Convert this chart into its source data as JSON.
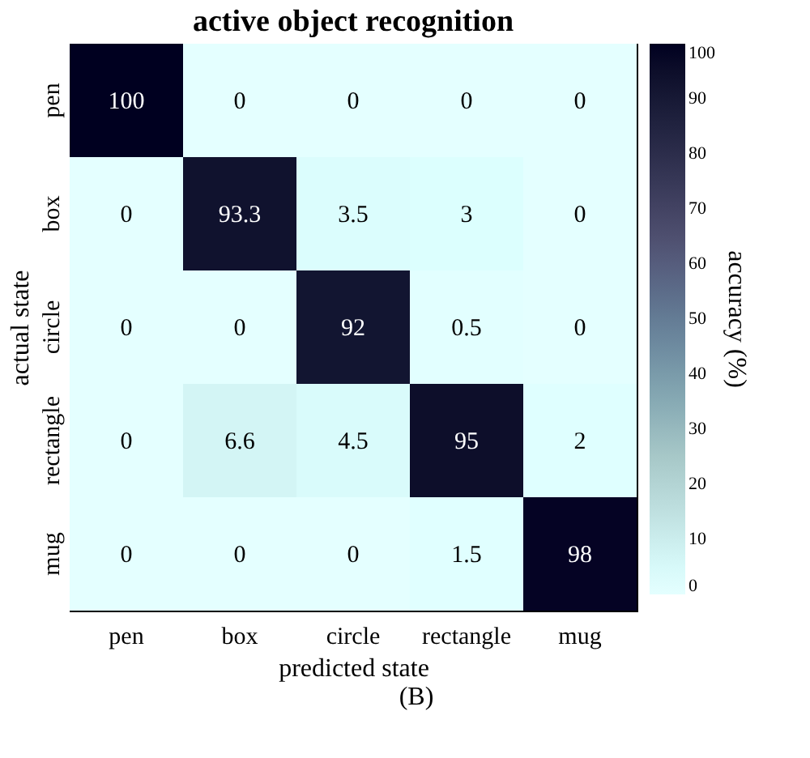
{
  "chart_data": {
    "type": "heatmap",
    "title": "active object recognition",
    "xlabel": "predicted state",
    "ylabel": "actual state",
    "clabel": "accuracy (%)",
    "categories": [
      "pen",
      "box",
      "circle",
      "rectangle",
      "mug"
    ],
    "y_categories": [
      "pen",
      "box",
      "circle",
      "rectangle",
      "mug"
    ],
    "cells": [
      [
        100,
        0,
        0,
        0,
        0
      ],
      [
        0,
        93.3,
        3.5,
        3,
        0
      ],
      [
        0,
        0,
        92,
        0.5,
        0
      ],
      [
        0,
        6.6,
        4.5,
        95,
        2
      ],
      [
        0,
        0,
        0,
        1.5,
        98
      ]
    ],
    "clim": [
      0,
      100
    ],
    "cticks": [
      0,
      10,
      20,
      30,
      40,
      50,
      60,
      70,
      80,
      90,
      100
    ],
    "data_labels": true,
    "annotations": [
      "(B)"
    ]
  }
}
